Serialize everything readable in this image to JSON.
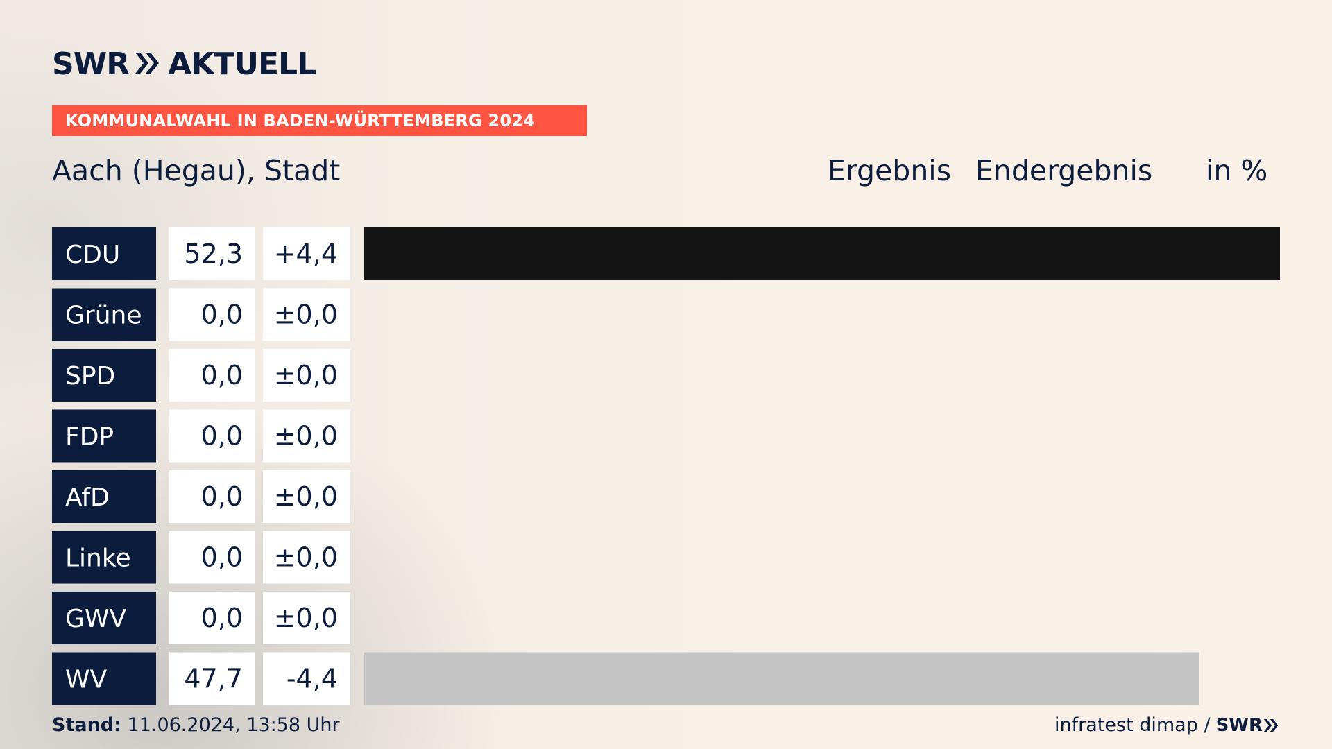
{
  "brand": {
    "logo_swr": "SWR",
    "logo_aktuell": "AKTUELL"
  },
  "banner": "KOMMUNALWAHL IN BADEN-WÜRTTEMBERG 2024",
  "place": "Aach (Hegau), Stadt",
  "headers": {
    "result": "Ergebnis",
    "final": "Endergebnis",
    "unit": "in %"
  },
  "footer": {
    "stand_label": "Stand:",
    "stand_value": "11.06.2024, 13:58 Uhr",
    "source": "infratest dimap /",
    "source_logo": "SWR"
  },
  "colors": {
    "party_box": "#0c1c3c",
    "cdu_bar": "#141414",
    "wv_bar": "#c4c4c4",
    "banner": "#fe5543",
    "text": "#0c1c3c"
  },
  "chart_data": {
    "type": "bar",
    "orientation": "horizontal",
    "unit": "%",
    "categories": [
      "CDU",
      "Grüne",
      "SPD",
      "FDP",
      "AfD",
      "Linke",
      "GWV",
      "WV"
    ],
    "values": [
      52.3,
      0.0,
      0.0,
      0.0,
      0.0,
      0.0,
      0.0,
      47.7
    ],
    "value_labels": [
      "52,3",
      "0,0",
      "0,0",
      "0,0",
      "0,0",
      "0,0",
      "0,0",
      "47,7"
    ],
    "change_labels": [
      "+4,4",
      "±0,0",
      "±0,0",
      "±0,0",
      "±0,0",
      "±0,0",
      "±0,0",
      "-4,4"
    ],
    "bar_colors": [
      "#141414",
      "#141414",
      "#141414",
      "#141414",
      "#141414",
      "#141414",
      "#141414",
      "#c4c4c4"
    ],
    "xlim": [
      0,
      52.3
    ],
    "grid": false
  }
}
